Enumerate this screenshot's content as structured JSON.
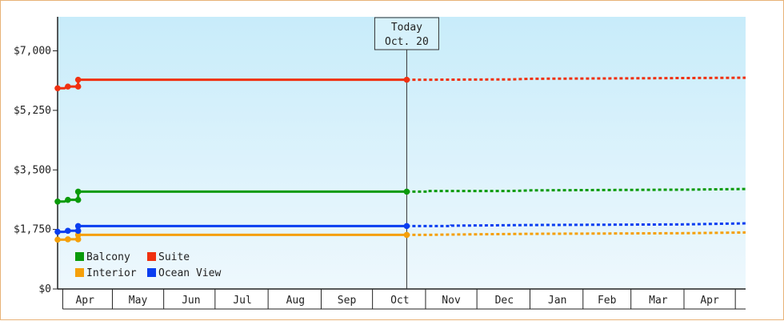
{
  "chart_data": {
    "type": "line",
    "ylim": [
      0,
      8000
    ],
    "y_ticks": [
      {
        "value": 0,
        "label": "$0"
      },
      {
        "value": 1750,
        "label": "$1,750"
      },
      {
        "value": 3500,
        "label": "$3,500"
      },
      {
        "value": 5250,
        "label": "$5,250"
      },
      {
        "value": 7000,
        "label": "$7,000"
      }
    ],
    "x_domain": [
      "2024-03-30",
      "2025-05-06"
    ],
    "x_labels": [
      {
        "label": "Apr",
        "date": "2024-04-15"
      },
      {
        "label": "May",
        "date": "2024-05-16"
      },
      {
        "label": "Jun",
        "date": "2024-06-16"
      },
      {
        "label": "Jul",
        "date": "2024-07-16"
      },
      {
        "label": "Aug",
        "date": "2024-08-16"
      },
      {
        "label": "Sep",
        "date": "2024-09-15"
      },
      {
        "label": "Oct",
        "date": "2024-10-16"
      },
      {
        "label": "Nov",
        "date": "2024-11-15"
      },
      {
        "label": "Dec",
        "date": "2024-12-16"
      },
      {
        "label": "Jan",
        "date": "2025-01-16"
      },
      {
        "label": "Feb",
        "date": "2025-02-14"
      },
      {
        "label": "Mar",
        "date": "2025-03-16"
      },
      {
        "label": "Apr",
        "date": "2025-04-15"
      }
    ],
    "x_separators": [
      "2024-04-02",
      "2024-05-01",
      "2024-05-31",
      "2024-06-30",
      "2024-07-31",
      "2024-08-31",
      "2024-09-30",
      "2024-10-31",
      "2024-11-30",
      "2024-12-31",
      "2025-01-31",
      "2025-02-28",
      "2025-03-31",
      "2025-04-30"
    ],
    "today": {
      "date": "2024-10-20",
      "line1": "Today",
      "line2": "Oct. 20"
    },
    "legend_position": "bottom-left",
    "grid": false,
    "series": [
      {
        "name": "Balcony",
        "color": "#0a9a0a",
        "history": [
          [
            "2024-03-30",
            2570
          ],
          [
            "2024-04-03",
            2570
          ],
          [
            "2024-04-05",
            2620
          ],
          [
            "2024-04-08",
            2620
          ],
          [
            "2024-04-11",
            2620
          ],
          [
            "2024-04-11",
            2860
          ],
          [
            "2024-10-20",
            2860
          ]
        ],
        "markers": [
          "2024-03-30",
          "2024-04-05",
          "2024-04-11",
          "2024-10-20"
        ],
        "forecast": [
          [
            "2024-10-20",
            2860
          ],
          [
            "2024-11-01",
            2860
          ],
          [
            "2024-11-01",
            2880
          ],
          [
            "2024-12-20",
            2880
          ],
          [
            "2025-01-01",
            2900
          ],
          [
            "2025-04-01",
            2920
          ],
          [
            "2025-05-06",
            2940
          ]
        ]
      },
      {
        "name": "Suite",
        "color": "#f03010",
        "history": [
          [
            "2024-03-30",
            5900
          ],
          [
            "2024-04-03",
            5900
          ],
          [
            "2024-04-05",
            5950
          ],
          [
            "2024-04-08",
            5950
          ],
          [
            "2024-04-11",
            5950
          ],
          [
            "2024-04-11",
            6150
          ],
          [
            "2024-10-20",
            6150
          ]
        ],
        "markers": [
          "2024-03-30",
          "2024-04-05",
          "2024-04-11",
          "2024-10-20"
        ],
        "forecast": [
          [
            "2024-10-20",
            6150
          ],
          [
            "2024-11-01",
            6150
          ],
          [
            "2024-12-20",
            6160
          ],
          [
            "2025-01-01",
            6180
          ],
          [
            "2025-04-01",
            6200
          ],
          [
            "2025-05-06",
            6210
          ]
        ]
      },
      {
        "name": "Interior",
        "color": "#f5a00a",
        "history": [
          [
            "2024-03-30",
            1450
          ],
          [
            "2024-04-03",
            1450
          ],
          [
            "2024-04-05",
            1460
          ],
          [
            "2024-04-08",
            1460
          ],
          [
            "2024-04-11",
            1460
          ],
          [
            "2024-04-11",
            1590
          ],
          [
            "2024-10-20",
            1590
          ]
        ],
        "markers": [
          "2024-03-30",
          "2024-04-05",
          "2024-04-11",
          "2024-10-20"
        ],
        "forecast": [
          [
            "2024-10-20",
            1590
          ],
          [
            "2024-11-01",
            1590
          ],
          [
            "2024-11-15",
            1600
          ],
          [
            "2025-01-01",
            1620
          ],
          [
            "2025-04-01",
            1640
          ],
          [
            "2025-05-06",
            1660
          ]
        ]
      },
      {
        "name": "Ocean View",
        "color": "#0a3ef0",
        "history": [
          [
            "2024-03-30",
            1680
          ],
          [
            "2024-04-03",
            1680
          ],
          [
            "2024-04-05",
            1710
          ],
          [
            "2024-04-08",
            1710
          ],
          [
            "2024-04-11",
            1710
          ],
          [
            "2024-04-11",
            1850
          ],
          [
            "2024-10-20",
            1850
          ]
        ],
        "markers": [
          "2024-03-30",
          "2024-04-05",
          "2024-04-11",
          "2024-10-20"
        ],
        "forecast": [
          [
            "2024-10-20",
            1850
          ],
          [
            "2024-11-15",
            1850
          ],
          [
            "2024-11-15",
            1860
          ],
          [
            "2025-01-01",
            1880
          ],
          [
            "2025-04-01",
            1900
          ],
          [
            "2025-05-06",
            1930
          ]
        ]
      }
    ]
  },
  "legend": {
    "items": [
      {
        "name": "Balcony",
        "color": "#0a9a0a"
      },
      {
        "name": "Suite",
        "color": "#f03010"
      },
      {
        "name": "Interior",
        "color": "#f5a00a"
      },
      {
        "name": "Ocean View",
        "color": "#0a3ef0"
      }
    ]
  }
}
